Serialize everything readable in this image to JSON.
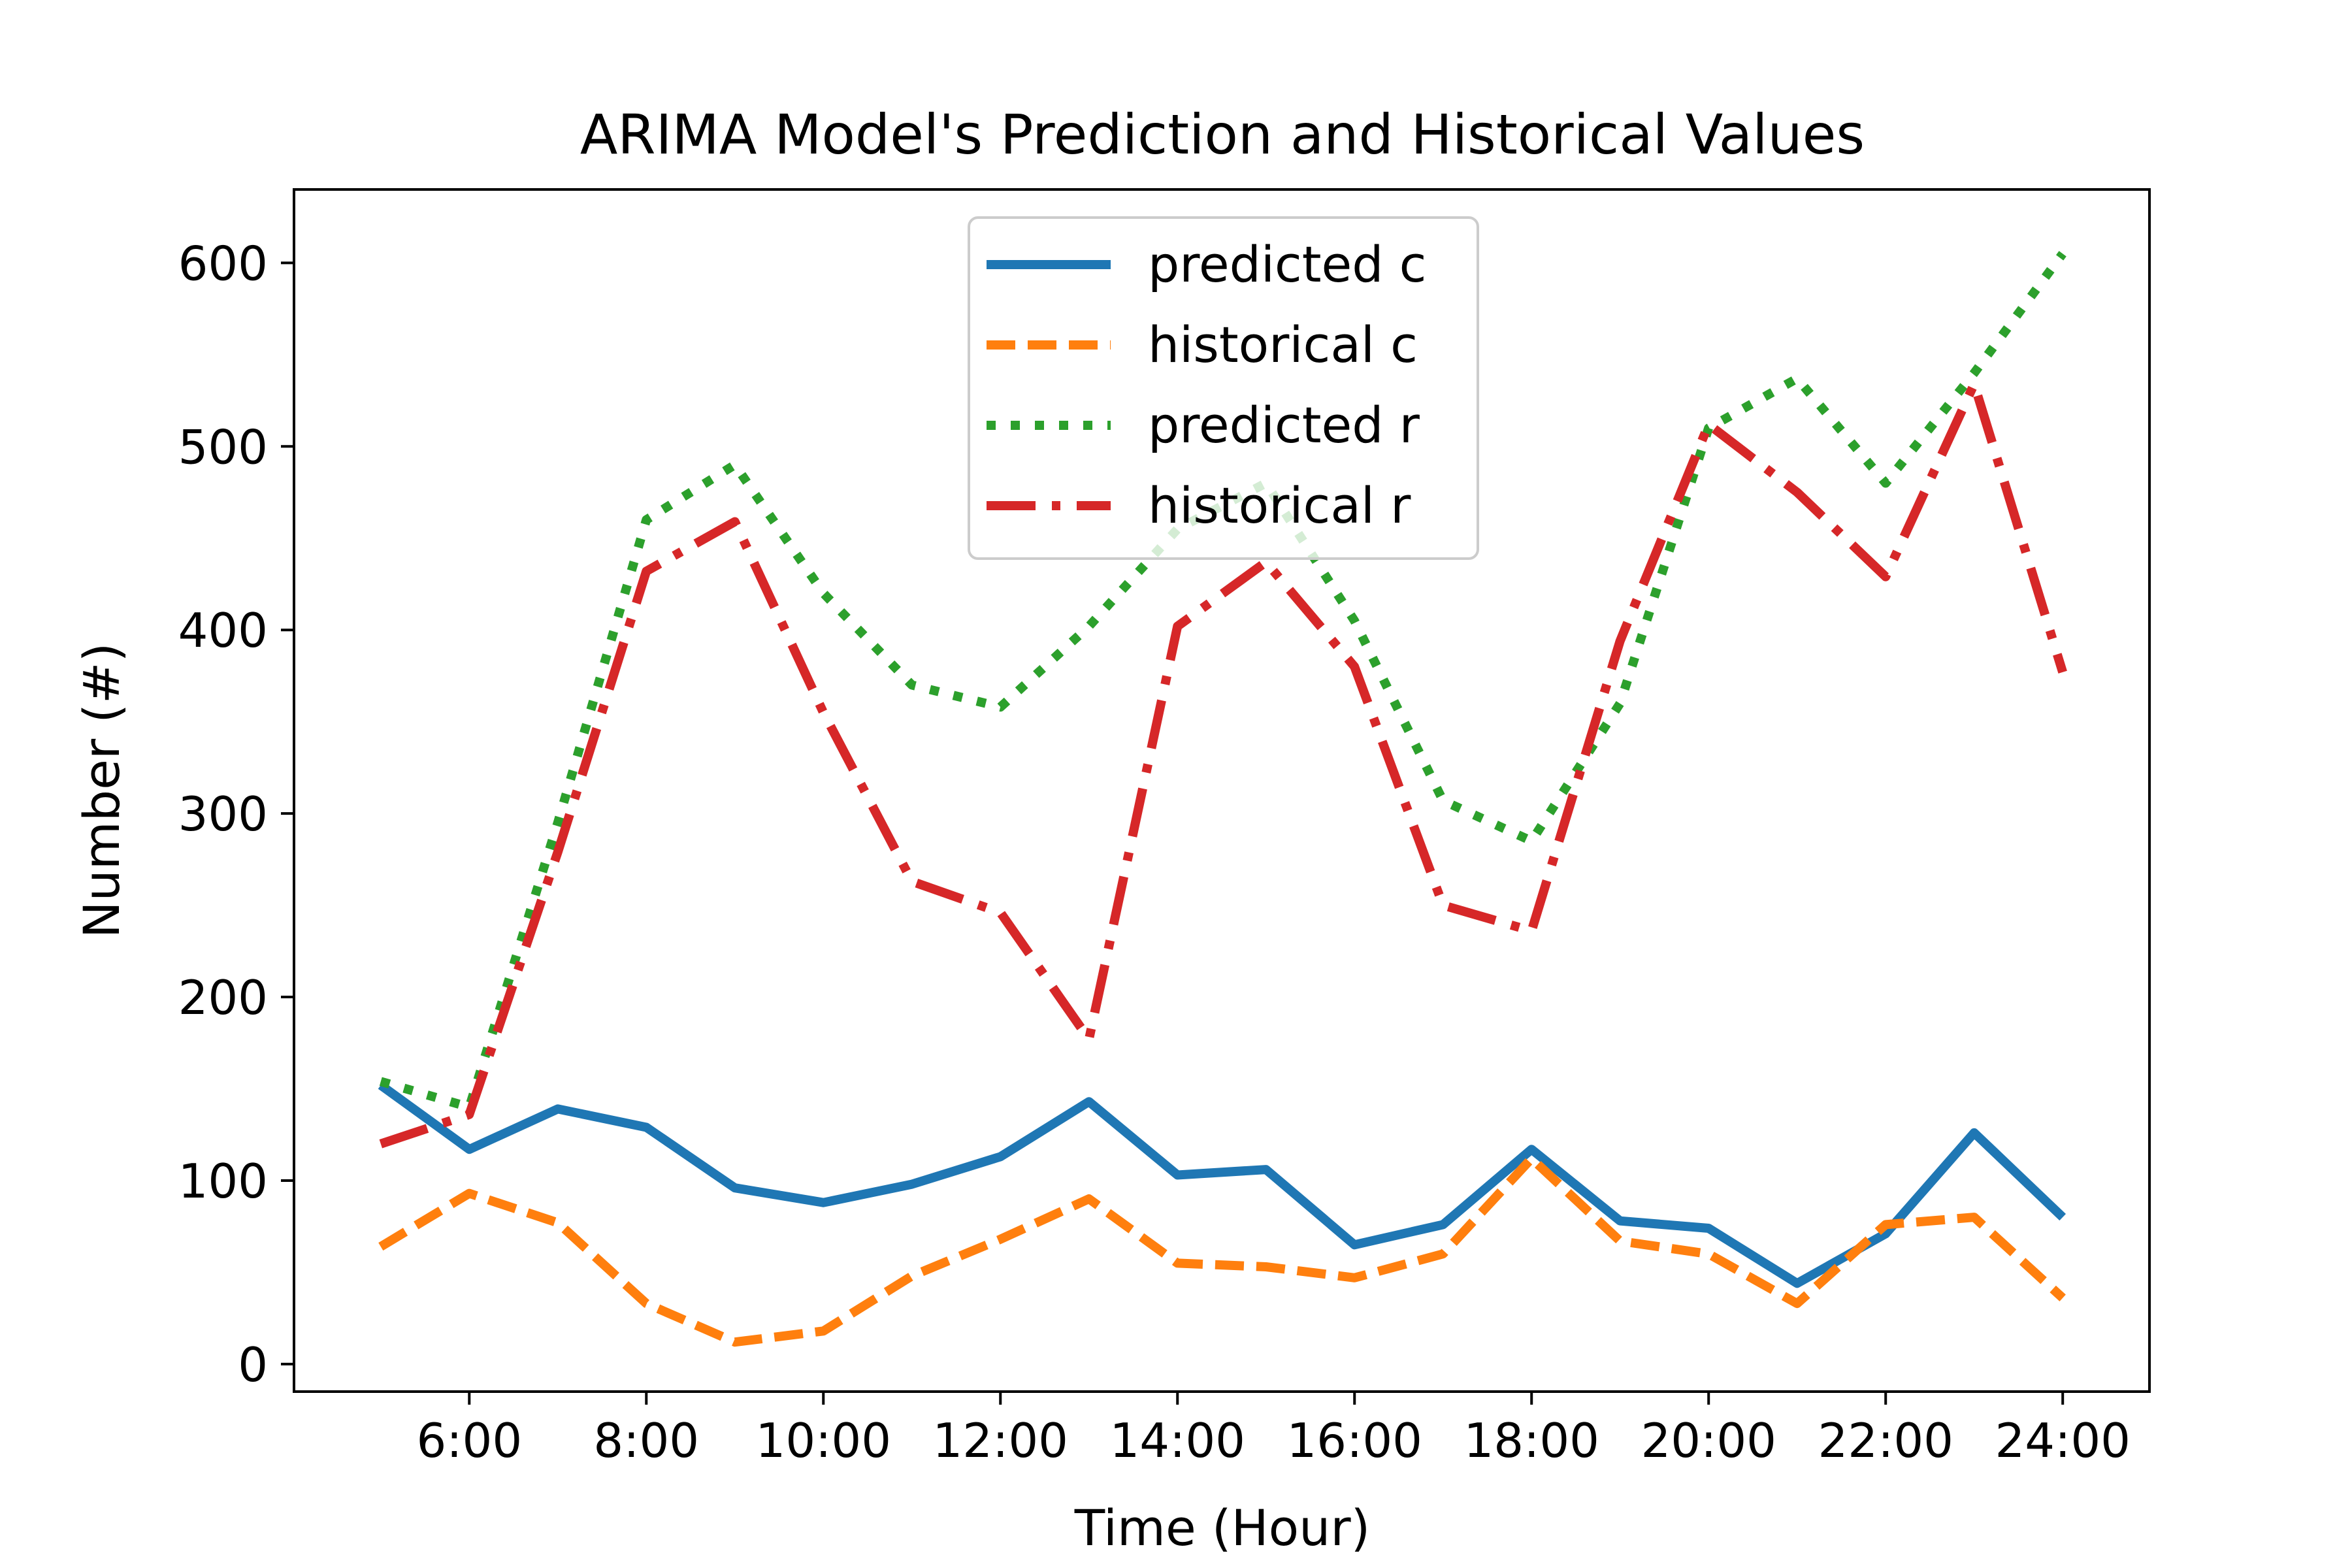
{
  "chart_data": {
    "type": "line",
    "title": "ARIMA Model's Prediction and Historical Values",
    "xlabel": "Time (Hour)",
    "ylabel": "Number (#)",
    "x": [
      5,
      6,
      7,
      8,
      9,
      10,
      11,
      12,
      13,
      14,
      15,
      16,
      17,
      18,
      19,
      20,
      21,
      22,
      23,
      24
    ],
    "xlim": [
      4.02,
      24.98
    ],
    "ylim": [
      -15,
      640
    ],
    "xticks": [
      6,
      8,
      10,
      12,
      14,
      16,
      18,
      20,
      22,
      24
    ],
    "xtick_labels": [
      "6:00",
      "8:00",
      "10:00",
      "12:00",
      "14:00",
      "16:00",
      "18:00",
      "20:00",
      "22:00",
      "24:00"
    ],
    "yticks": [
      0,
      100,
      200,
      300,
      400,
      500,
      600
    ],
    "ytick_labels": [
      "0",
      "100",
      "200",
      "300",
      "400",
      "500",
      "600"
    ],
    "grid": false,
    "legend_position": "top-center",
    "series": [
      {
        "name": "predicted c",
        "color": "#1f77b4",
        "style": "solid",
        "values": [
          152,
          117,
          139,
          129,
          96,
          88,
          98,
          113,
          143,
          103,
          106,
          65,
          76,
          117,
          78,
          74,
          44,
          71,
          126,
          80
        ]
      },
      {
        "name": "historical c",
        "color": "#ff7f0e",
        "style": "dashed",
        "values": [
          64,
          93,
          77,
          33,
          12,
          18,
          48,
          68,
          90,
          55,
          53,
          47,
          60,
          112,
          67,
          60,
          33,
          76,
          80,
          36
        ]
      },
      {
        "name": "predicted r",
        "color": "#2ca02c",
        "style": "dotted",
        "values": [
          154,
          140,
          295,
          460,
          490,
          420,
          370,
          358,
          402,
          455,
          480,
          405,
          307,
          285,
          360,
          510,
          537,
          480,
          540,
          605
        ]
      },
      {
        "name": "historical r",
        "color": "#d62728",
        "style": "dashdot",
        "values": [
          120,
          136,
          279,
          432,
          459,
          355,
          263,
          246,
          177,
          402,
          437,
          380,
          250,
          236,
          394,
          512,
          475,
          429,
          534,
          377
        ]
      }
    ]
  }
}
